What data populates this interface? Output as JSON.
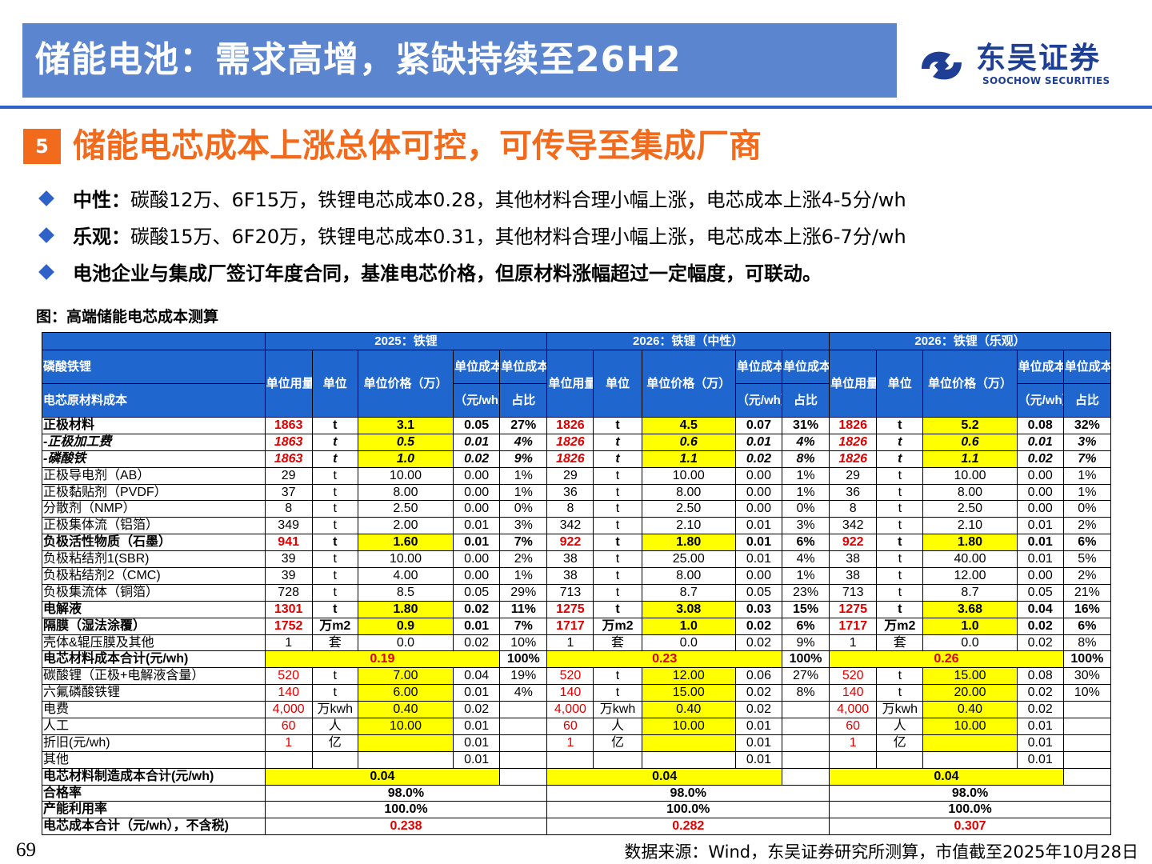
{
  "header": {
    "title": "储能电池：需求高增，紧缺持续至26H2",
    "logo_cn": "东吴证券",
    "logo_en": "SOOCHOW SECURITIES"
  },
  "section": {
    "number": "5",
    "title": "储能电芯成本上涨总体可控，可传导至集成厂商"
  },
  "bullets": [
    {
      "label": "中性：",
      "text": "碳酸12万、6F15万，铁锂电芯成本0.28，其他材料合理小幅上涨，电芯成本上涨4-5分/wh"
    },
    {
      "label": "乐观：",
      "text": "碳酸15万、6F20万，铁锂电芯成本0.31，其他材料合理小幅上涨，电芯成本上涨6-7分/wh"
    },
    {
      "label": "",
      "text": "电池企业与集成厂签订年度合同，基准电芯价格，但原材料涨幅超过一定幅度，可联动。"
    }
  ],
  "figure_caption": "图：高端储能电芯成本测算",
  "table": {
    "scenarios": [
      "2025：铁锂",
      "2026：铁锂（中性）",
      "2026：铁锂（乐观）"
    ],
    "row_header_top": "磷酸铁锂",
    "row_header_bottom": "电芯原材料成本",
    "col_headers": {
      "qty": "单位用量",
      "unit": "单位",
      "price": "单位价格（万）",
      "cost_top": "单位成本",
      "cost_sub": "（元/wh）",
      "share_top": "单位成本",
      "share_sub": "占比"
    },
    "rows": [
      {
        "name": "正极材料",
        "s": [
          [
            "1863",
            "t",
            "3.1",
            "0.05",
            "27%"
          ],
          [
            "1826",
            "t",
            "4.5",
            "0.07",
            "31%"
          ],
          [
            "1826",
            "t",
            "5.2",
            "0.08",
            "32%"
          ]
        ]
      },
      {
        "name": "-正极加工费",
        "s": [
          [
            "1863",
            "t",
            "0.5",
            "0.01",
            "4%"
          ],
          [
            "1826",
            "t",
            "0.6",
            "0.01",
            "4%"
          ],
          [
            "1826",
            "t",
            "0.6",
            "0.01",
            "3%"
          ]
        ]
      },
      {
        "name": "-磷酸铁",
        "s": [
          [
            "1863",
            "t",
            "1.0",
            "0.02",
            "9%"
          ],
          [
            "1826",
            "t",
            "1.1",
            "0.02",
            "8%"
          ],
          [
            "1826",
            "t",
            "1.1",
            "0.02",
            "7%"
          ]
        ]
      },
      {
        "name": "正极导电剂（AB）",
        "s": [
          [
            "29",
            "t",
            "10.00",
            "0.00",
            "1%"
          ],
          [
            "29",
            "t",
            "10.00",
            "0.00",
            "1%"
          ],
          [
            "29",
            "t",
            "10.00",
            "0.00",
            "1%"
          ]
        ]
      },
      {
        "name": "正极黏贴剂（PVDF）",
        "s": [
          [
            "37",
            "t",
            "8.00",
            "0.00",
            "1%"
          ],
          [
            "36",
            "t",
            "8.00",
            "0.00",
            "1%"
          ],
          [
            "36",
            "t",
            "8.00",
            "0.00",
            "1%"
          ]
        ]
      },
      {
        "name": "分散剂（NMP）",
        "s": [
          [
            "8",
            "t",
            "2.50",
            "0.00",
            "0%"
          ],
          [
            "8",
            "t",
            "2.50",
            "0.00",
            "0%"
          ],
          [
            "8",
            "t",
            "2.50",
            "0.00",
            "0%"
          ]
        ]
      },
      {
        "name": "正极集体流（铝箔）",
        "s": [
          [
            "349",
            "t",
            "2.00",
            "0.01",
            "3%"
          ],
          [
            "342",
            "t",
            "2.10",
            "0.01",
            "3%"
          ],
          [
            "342",
            "t",
            "2.10",
            "0.01",
            "2%"
          ]
        ]
      },
      {
        "name": "负极活性物质（石墨）",
        "s": [
          [
            "941",
            "t",
            "1.60",
            "0.01",
            "7%"
          ],
          [
            "922",
            "t",
            "1.80",
            "0.01",
            "6%"
          ],
          [
            "922",
            "t",
            "1.80",
            "0.01",
            "6%"
          ]
        ]
      },
      {
        "name": "负极粘结剂1(SBR)",
        "s": [
          [
            "39",
            "t",
            "10.00",
            "0.00",
            "2%"
          ],
          [
            "38",
            "t",
            "25.00",
            "0.01",
            "4%"
          ],
          [
            "38",
            "t",
            "40.00",
            "0.01",
            "5%"
          ]
        ]
      },
      {
        "name": "负极粘结剂2（CMC)",
        "s": [
          [
            "39",
            "t",
            "4.00",
            "0.00",
            "1%"
          ],
          [
            "38",
            "t",
            "8.00",
            "0.00",
            "1%"
          ],
          [
            "38",
            "t",
            "12.00",
            "0.00",
            "2%"
          ]
        ]
      },
      {
        "name": "负极集流体（铜箔）",
        "s": [
          [
            "728",
            "t",
            "8.5",
            "0.05",
            "29%"
          ],
          [
            "713",
            "t",
            "8.7",
            "0.05",
            "23%"
          ],
          [
            "713",
            "t",
            "8.7",
            "0.05",
            "21%"
          ]
        ]
      },
      {
        "name": "电解液",
        "s": [
          [
            "1301",
            "t",
            "1.80",
            "0.02",
            "11%"
          ],
          [
            "1275",
            "t",
            "3.08",
            "0.03",
            "15%"
          ],
          [
            "1275",
            "t",
            "3.68",
            "0.04",
            "16%"
          ]
        ]
      },
      {
        "name": "隔膜（湿法涂覆）",
        "s": [
          [
            "1752",
            "万m2",
            "0.9",
            "0.01",
            "7%"
          ],
          [
            "1717",
            "万m2",
            "1.0",
            "0.02",
            "6%"
          ],
          [
            "1717",
            "万m2",
            "1.0",
            "0.02",
            "6%"
          ]
        ]
      },
      {
        "name": "壳体&辊压膜及其他",
        "s": [
          [
            "1",
            "套",
            "0.0",
            "0.02",
            "10%"
          ],
          [
            "1",
            "套",
            "0.0",
            "0.02",
            "9%"
          ],
          [
            "1",
            "套",
            "0.0",
            "0.02",
            "8%"
          ]
        ]
      },
      {
        "name": "电芯材料成本合计(元/wh)",
        "s": [
          [
            "0.19",
            "100%"
          ],
          [
            "0.23",
            "100%"
          ],
          [
            "0.26",
            "100%"
          ]
        ]
      },
      {
        "name": "碳酸锂（正极+电解液含量）",
        "s": [
          [
            "520",
            "t",
            "7.00",
            "0.04",
            "19%"
          ],
          [
            "520",
            "t",
            "12.00",
            "0.06",
            "27%"
          ],
          [
            "520",
            "t",
            "15.00",
            "0.08",
            "30%"
          ]
        ]
      },
      {
        "name": "六氟磷酸铁锂",
        "s": [
          [
            "140",
            "t",
            "6.00",
            "0.01",
            "4%"
          ],
          [
            "140",
            "t",
            "15.00",
            "0.02",
            "8%"
          ],
          [
            "140",
            "t",
            "20.00",
            "0.02",
            "10%"
          ]
        ]
      },
      {
        "name": "电费",
        "s": [
          [
            "4,000",
            "万kwh",
            "0.40",
            "0.02",
            ""
          ],
          [
            "4,000",
            "万kwh",
            "0.40",
            "0.02",
            ""
          ],
          [
            "4,000",
            "万kwh",
            "0.40",
            "0.02",
            ""
          ]
        ]
      },
      {
        "name": "人工",
        "s": [
          [
            "60",
            "人",
            "10.00",
            "0.01",
            ""
          ],
          [
            "60",
            "人",
            "10.00",
            "0.01",
            ""
          ],
          [
            "60",
            "人",
            "10.00",
            "0.01",
            ""
          ]
        ]
      },
      {
        "name": "折旧(元/wh)",
        "s": [
          [
            "1",
            "亿",
            "",
            "0.01",
            ""
          ],
          [
            "1",
            "亿",
            "",
            "0.01",
            ""
          ],
          [
            "1",
            "亿",
            "",
            "0.01",
            ""
          ]
        ]
      },
      {
        "name": "其他",
        "s": [
          [
            "",
            "",
            "",
            "0.01",
            ""
          ],
          [
            "",
            "",
            "",
            "0.01",
            ""
          ],
          [
            "",
            "",
            "",
            "0.01",
            ""
          ]
        ]
      },
      {
        "name": "电芯材料制造成本合计(元/wh)",
        "s": [
          [
            "0.04",
            ""
          ],
          [
            "0.04",
            ""
          ],
          [
            "0.04",
            ""
          ]
        ]
      },
      {
        "name": "合格率",
        "s": [
          "98.0%",
          "98.0%",
          "98.0%"
        ]
      },
      {
        "name": "产能利用率",
        "s": [
          "100.0%",
          "100.0%",
          "100.0%"
        ]
      },
      {
        "name": "电芯成本合计（元/wh），不含税)",
        "s": [
          "0.238",
          "0.282",
          "0.307"
        ]
      }
    ]
  },
  "footer": {
    "page_number": "69",
    "source": "数据来源：Wind，东吴证券研究所测算，市值截至2025年10月28日"
  },
  "colors": {
    "title_bar": "#5b86cf",
    "accent_orange": "#f26b1d",
    "table_header": "#1f66ce",
    "highlight": "#ffff00",
    "value_red": "#e00000",
    "logo_blue": "#1f3f94"
  }
}
